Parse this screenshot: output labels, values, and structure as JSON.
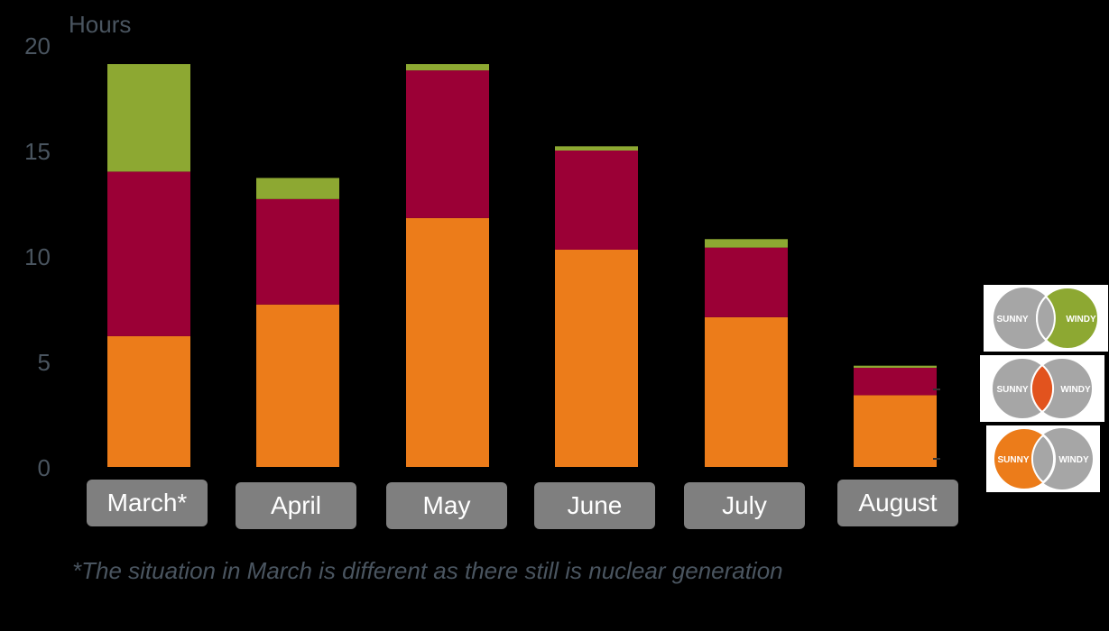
{
  "chart_data": {
    "type": "bar",
    "stacked": true,
    "ylabel": "Hours",
    "ylim": [
      0,
      20
    ],
    "yticks": [
      "0",
      "5",
      "10",
      "15",
      "20"
    ],
    "categories": [
      "March*",
      "April",
      "May",
      "June",
      "July",
      "August"
    ],
    "series": [
      {
        "color": "#ec7c1a",
        "values": [
          6.2,
          7.7,
          11.8,
          10.3,
          7.1,
          3.4
        ]
      },
      {
        "color": "#9b0036",
        "values": [
          7.8,
          5.0,
          7.0,
          4.7,
          3.3,
          1.3
        ]
      },
      {
        "color": "#8da832",
        "values": [
          5.1,
          1.0,
          0.3,
          0.2,
          0.4,
          0.1
        ]
      }
    ],
    "grid": false,
    "legend": "right"
  },
  "note": "*The situation in March is different as there still is nuclear generation",
  "venn_legend": [
    {
      "left": "SUNNY",
      "right": "WINDY",
      "highlight": "right",
      "color": "#8da832"
    },
    {
      "left": "SUNNY",
      "right": "WINDY",
      "highlight": "intersection",
      "color": "#e2531e"
    },
    {
      "left": "SUNNY",
      "right": "WINDY",
      "highlight": "left",
      "color": "#ec7c1a"
    }
  ]
}
